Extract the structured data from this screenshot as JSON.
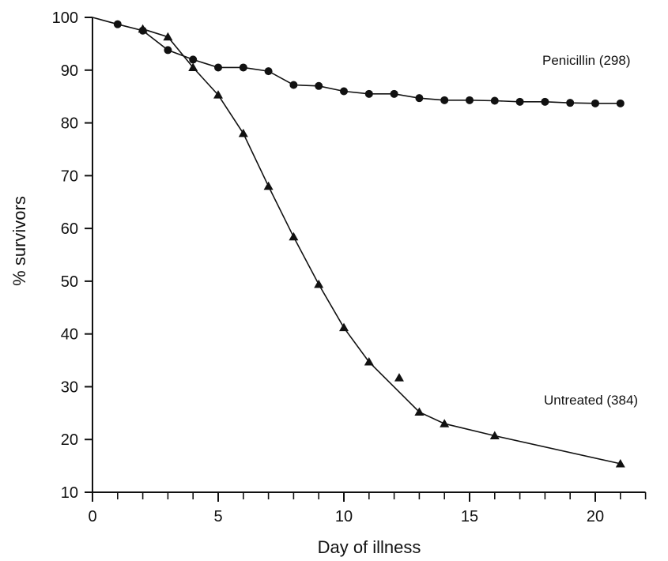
{
  "chart_data": {
    "type": "line",
    "title": "",
    "xlabel": "Day of illness",
    "ylabel": "% survivors",
    "xlim": [
      0,
      22
    ],
    "ylim": [
      10,
      100
    ],
    "x_ticks_major": [
      0,
      5,
      10,
      15,
      20
    ],
    "x_tick_labels": [
      "0",
      "5",
      "10",
      "15",
      "20"
    ],
    "x_ticks_minor": [
      1,
      2,
      3,
      4,
      6,
      7,
      8,
      9,
      11,
      12,
      13,
      14,
      16,
      17,
      18,
      19,
      21,
      22
    ],
    "y_ticks": [
      10,
      20,
      30,
      40,
      50,
      60,
      70,
      80,
      90,
      100
    ],
    "y_tick_labels": [
      "10",
      "20",
      "30",
      "40",
      "50",
      "60",
      "70",
      "80",
      "90",
      "100"
    ],
    "grid": false,
    "legend": "none",
    "series": [
      {
        "name": "Penicillin (298)",
        "marker": "circle",
        "color": "#111111",
        "connect_from_origin": true,
        "points": [
          {
            "x": 1,
            "y": 98.7,
            "line": true
          },
          {
            "x": 2,
            "y": 97.5,
            "line": true
          },
          {
            "x": 3,
            "y": 93.8,
            "line": true
          },
          {
            "x": 4,
            "y": 92.0,
            "line": true
          },
          {
            "x": 5,
            "y": 90.5,
            "line": true
          },
          {
            "x": 6,
            "y": 90.5,
            "line": true
          },
          {
            "x": 7,
            "y": 89.8,
            "line": true
          },
          {
            "x": 8,
            "y": 87.2,
            "line": true
          },
          {
            "x": 9,
            "y": 87.0,
            "line": true
          },
          {
            "x": 10,
            "y": 86.0,
            "line": true
          },
          {
            "x": 11,
            "y": 85.5,
            "line": true
          },
          {
            "x": 12,
            "y": 85.5,
            "line": true
          },
          {
            "x": 13,
            "y": 84.7,
            "line": true
          },
          {
            "x": 14,
            "y": 84.3,
            "line": true
          },
          {
            "x": 15,
            "y": 84.3,
            "line": true
          },
          {
            "x": 16,
            "y": 84.2,
            "line": true
          },
          {
            "x": 17,
            "y": 84.0,
            "line": true
          },
          {
            "x": 18,
            "y": 84.0,
            "line": true
          },
          {
            "x": 19,
            "y": 83.8,
            "line": true
          },
          {
            "x": 20,
            "y": 83.7,
            "line": true
          },
          {
            "x": 21,
            "y": 83.7,
            "line": true
          }
        ]
      },
      {
        "name": "Untreated (384)",
        "marker": "triangle",
        "color": "#111111",
        "connect_from_origin": false,
        "points": [
          {
            "x": 2,
            "y": 97.8,
            "line": true
          },
          {
            "x": 3,
            "y": 96.3,
            "line": true
          },
          {
            "x": 4,
            "y": 90.5,
            "line": true
          },
          {
            "x": 5,
            "y": 85.3,
            "line": true
          },
          {
            "x": 6,
            "y": 78.0,
            "line": true
          },
          {
            "x": 7,
            "y": 68.0,
            "line": true
          },
          {
            "x": 8,
            "y": 58.4,
            "line": true
          },
          {
            "x": 9,
            "y": 49.4,
            "line": true
          },
          {
            "x": 10,
            "y": 41.2,
            "line": true
          },
          {
            "x": 11,
            "y": 34.7,
            "line": true
          },
          {
            "x": 12.2,
            "y": 31.7,
            "line": false
          },
          {
            "x": 13,
            "y": 25.2,
            "line": true
          },
          {
            "x": 14,
            "y": 23.0,
            "line": true
          },
          {
            "x": 16,
            "y": 20.7,
            "line": true
          },
          {
            "x": 21,
            "y": 15.4,
            "line": true
          }
        ]
      }
    ],
    "annotations": [
      {
        "text": "Penicillin (298)",
        "series": 0
      },
      {
        "text": "Untreated (384)",
        "series": 1
      }
    ]
  }
}
